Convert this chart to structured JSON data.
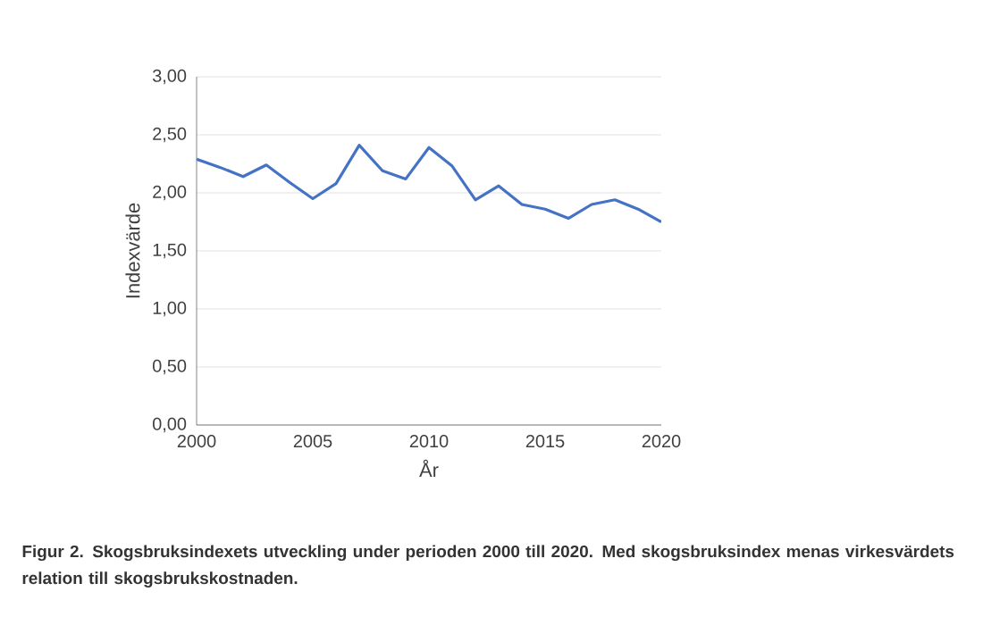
{
  "chart_data": {
    "type": "line",
    "xlabel": "År",
    "ylabel": "Indexvärde",
    "x": [
      2000,
      2001,
      2002,
      2003,
      2004,
      2005,
      2006,
      2007,
      2008,
      2009,
      2010,
      2011,
      2012,
      2013,
      2014,
      2015,
      2016,
      2017,
      2018,
      2019,
      2020
    ],
    "series": [
      {
        "color": "#4472c4",
        "values": [
          2.29,
          2.22,
          2.14,
          2.24,
          2.09,
          1.95,
          2.08,
          2.41,
          2.19,
          2.12,
          2.39,
          2.23,
          1.94,
          2.06,
          1.9,
          1.86,
          1.78,
          1.9,
          1.94,
          1.86,
          1.75
        ]
      }
    ],
    "xlim": [
      2000,
      2020
    ],
    "xticks": [
      2000,
      2005,
      2010,
      2015,
      2020
    ],
    "ylim": [
      0,
      3
    ],
    "yticks": [
      {
        "value": 0,
        "label": "0,00"
      },
      {
        "value": 0.5,
        "label": "0,50"
      },
      {
        "value": 1,
        "label": "1,00"
      },
      {
        "value": 1.5,
        "label": "1,50"
      },
      {
        "value": 2,
        "label": "2,00"
      },
      {
        "value": 2.5,
        "label": "2,50"
      },
      {
        "value": 3,
        "label": "3,00"
      }
    ],
    "grid": "y",
    "marker": "none",
    "line_style": "solid",
    "annotations": [
      "**Figur 2. Skogsbruksindexets utveckling under perioden 2000 till 2020. Med skogsbruksindex menas virkesvärdets relation till skogsbrukskostnaden.**"
    ]
  }
}
